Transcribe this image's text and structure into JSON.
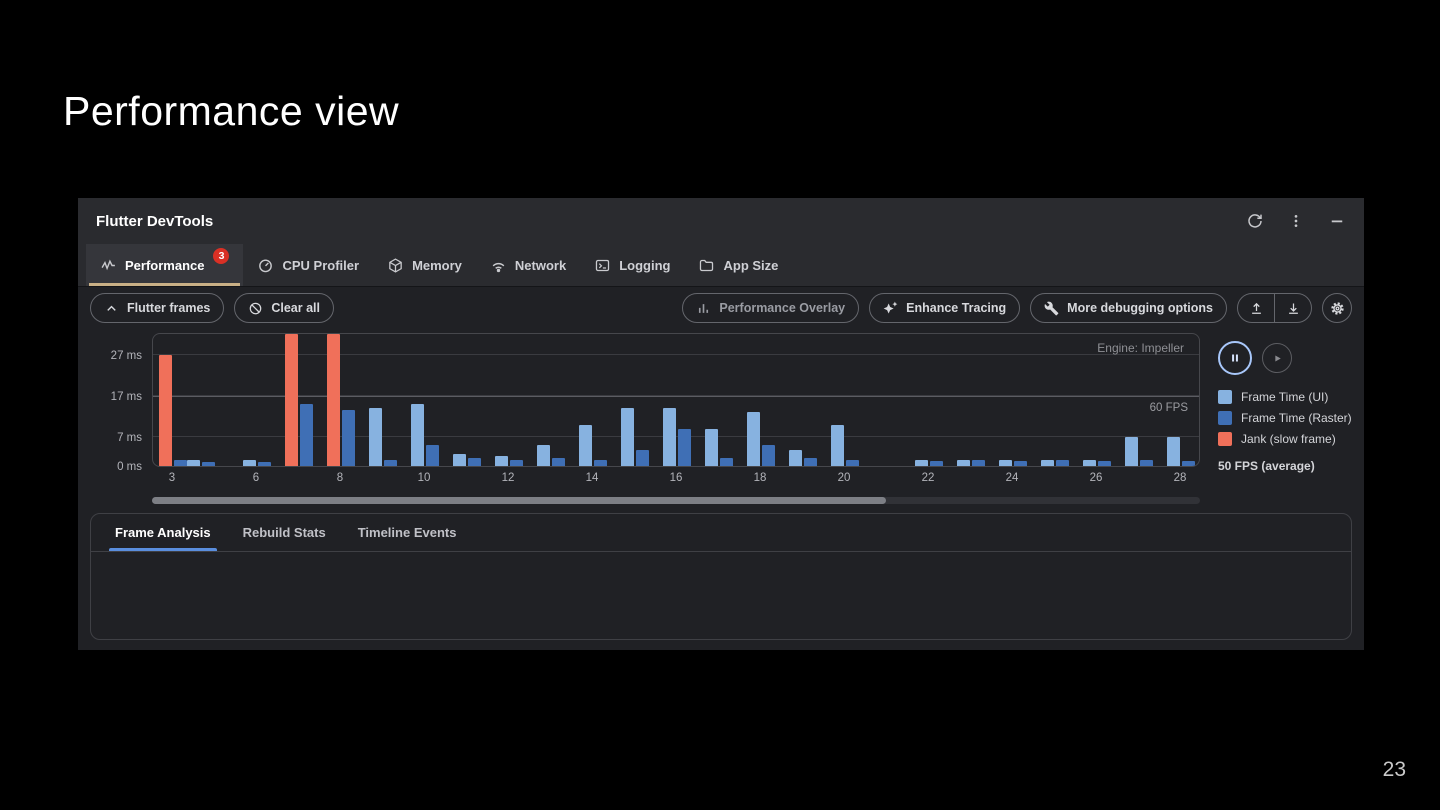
{
  "slide": {
    "title": "Performance view",
    "page_number": "23"
  },
  "devtools": {
    "window_title": "Flutter DevTools",
    "tabs": [
      {
        "label": "Performance",
        "badge": "3",
        "selected": true
      },
      {
        "label": "CPU Profiler",
        "selected": false
      },
      {
        "label": "Memory",
        "selected": false
      },
      {
        "label": "Network",
        "selected": false
      },
      {
        "label": "Logging",
        "selected": false
      },
      {
        "label": "App Size",
        "selected": false
      }
    ],
    "toolbar": {
      "flutter_frames_label": "Flutter frames",
      "clear_all_label": "Clear all",
      "performance_overlay_label": "Performance Overlay",
      "enhance_tracing_label": "Enhance Tracing",
      "more_debugging_label": "More debugging options"
    },
    "bottom_tabs": [
      {
        "label": "Frame Analysis",
        "selected": true
      },
      {
        "label": "Rebuild Stats",
        "selected": false
      },
      {
        "label": "Timeline Events",
        "selected": false
      }
    ]
  },
  "chart_data": {
    "type": "bar",
    "title": "Flutter frames timeline chart",
    "engine_label": "Engine: Impeller",
    "fps_line_label": "60 FPS",
    "fps_line_value_ms": 16.7,
    "average_fps_label": "50 FPS (average)",
    "ylim": [
      0,
      32
    ],
    "y_unit": "ms",
    "y_ticks": [
      {
        "label": "27 ms",
        "value": 27
      },
      {
        "label": "17 ms",
        "value": 17
      },
      {
        "label": "7 ms",
        "value": 7
      },
      {
        "label": "0 ms",
        "value": 0
      }
    ],
    "x_ticks": [
      "3",
      "6",
      "8",
      "10",
      "12",
      "14",
      "16",
      "18",
      "20",
      "22",
      "24",
      "26",
      "28"
    ],
    "legend": [
      {
        "name": "Frame Time (UI)",
        "color": "#87b2e0"
      },
      {
        "name": "Frame Time (Raster)",
        "color": "#3f6fb5"
      },
      {
        "name": "Jank (slow frame)",
        "color": "#f0705a"
      }
    ],
    "frames": [
      {
        "x": 3,
        "ui_ms": 27,
        "raster_ms": 1.5,
        "jank": true
      },
      {
        "x": 4,
        "ui_ms": 1.5,
        "raster_ms": 1
      },
      {
        "x": 6,
        "ui_ms": 1.5,
        "raster_ms": 1
      },
      {
        "x": 7,
        "ui_ms": 34,
        "raster_ms": 15,
        "jank": true
      },
      {
        "x": 8,
        "ui_ms": 34,
        "raster_ms": 13.5,
        "jank": true
      },
      {
        "x": 9,
        "ui_ms": 14,
        "raster_ms": 1.5
      },
      {
        "x": 10,
        "ui_ms": 15,
        "raster_ms": 5
      },
      {
        "x": 11,
        "ui_ms": 3,
        "raster_ms": 2
      },
      {
        "x": 12,
        "ui_ms": 2.5,
        "raster_ms": 1.5
      },
      {
        "x": 13,
        "ui_ms": 5,
        "raster_ms": 2
      },
      {
        "x": 14,
        "ui_ms": 10,
        "raster_ms": 1.5
      },
      {
        "x": 15,
        "ui_ms": 14,
        "raster_ms": 4
      },
      {
        "x": 16,
        "ui_ms": 14,
        "raster_ms": 9
      },
      {
        "x": 17,
        "ui_ms": 9,
        "raster_ms": 2
      },
      {
        "x": 18,
        "ui_ms": 13,
        "raster_ms": 5
      },
      {
        "x": 19,
        "ui_ms": 4,
        "raster_ms": 2
      },
      {
        "x": 20,
        "ui_ms": 10,
        "raster_ms": 1.5
      },
      {
        "x": 22,
        "ui_ms": 1.5,
        "raster_ms": 1.2
      },
      {
        "x": 23,
        "ui_ms": 1.5,
        "raster_ms": 1.5
      },
      {
        "x": 24,
        "ui_ms": 1.5,
        "raster_ms": 1.2
      },
      {
        "x": 25,
        "ui_ms": 1.5,
        "raster_ms": 1.5
      },
      {
        "x": 26,
        "ui_ms": 1.5,
        "raster_ms": 1.2
      },
      {
        "x": 27,
        "ui_ms": 7,
        "raster_ms": 1.5
      },
      {
        "x": 28,
        "ui_ms": 7,
        "raster_ms": 1.2
      }
    ]
  }
}
